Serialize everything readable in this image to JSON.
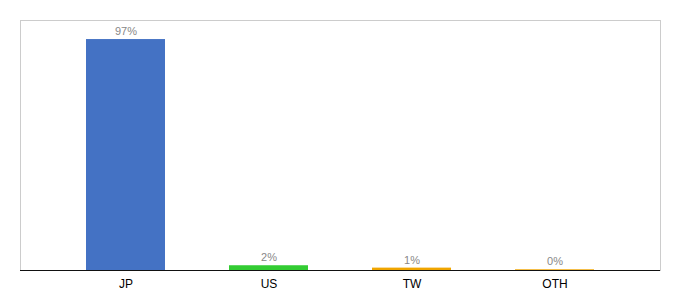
{
  "chart_data": {
    "type": "bar",
    "categories": [
      "JP",
      "US",
      "TW",
      "OTH"
    ],
    "values": [
      97,
      2,
      1,
      0.3
    ],
    "value_labels": [
      "97%",
      "2%",
      "1%",
      "0%"
    ],
    "colors": [
      "#4472c4",
      "#33cc33",
      "#f0a500",
      "#f0a500"
    ],
    "ylim": [
      0,
      105
    ],
    "data_labels": true,
    "tick_labels": "x"
  }
}
